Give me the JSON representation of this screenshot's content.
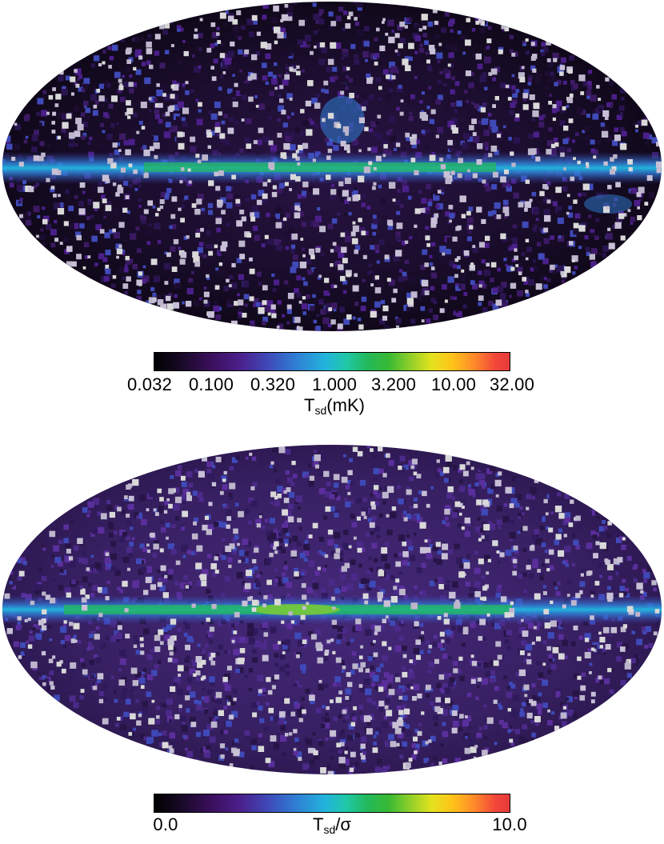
{
  "panels": [
    {
      "id": "top",
      "colorbar": {
        "ticks": [
          "0.032",
          "0.100",
          "0.320",
          "1.000",
          "3.200",
          "10.00",
          "32.00"
        ],
        "label_main": "T",
        "label_sub": "sd",
        "label_suffix": "(mK)"
      }
    },
    {
      "id": "bottom",
      "colorbar": {
        "ticks_left": "0.0",
        "ticks_right": "10.0",
        "label_main": "T",
        "label_sub": "sd",
        "label_suffix": "/σ"
      }
    }
  ],
  "colors": {
    "background_sky_top": "#120a1c",
    "background_sky_bottom": "#3a1f66",
    "galactic_plane": "#22b3dc",
    "plane_core": "#39b934",
    "hot_spot": "#e4e21d",
    "masked_point": "#d9d9d9"
  }
}
